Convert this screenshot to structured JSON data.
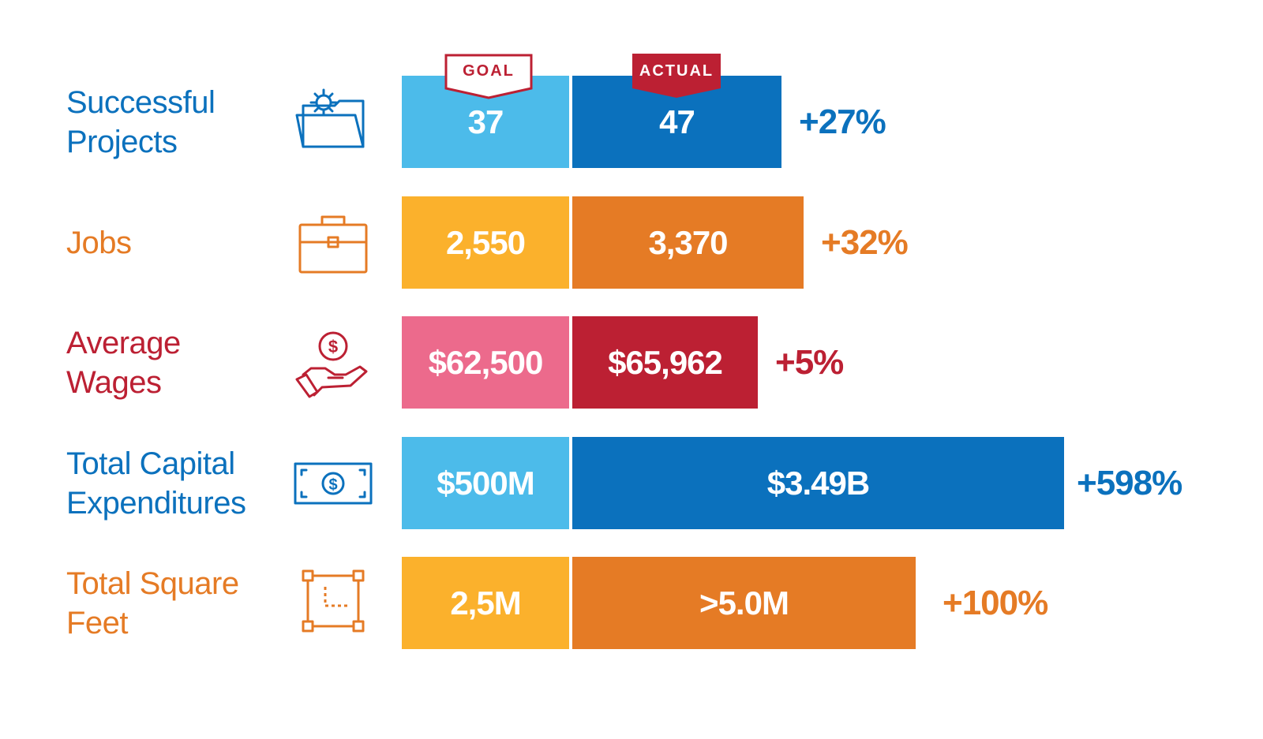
{
  "legend": {
    "goal": "GOAL",
    "actual": "ACTUAL"
  },
  "colors": {
    "blue_light": "#4cbbea",
    "blue_dark": "#0b71bd",
    "gold": "#fbb12c",
    "orange": "#e57b25",
    "pink": "#ec6a8c",
    "crimson": "#bc2033"
  },
  "chart_data": {
    "type": "bar",
    "orientation": "horizontal",
    "stacked": true,
    "series_names": [
      "GOAL",
      "ACTUAL"
    ],
    "rows": [
      {
        "label": [
          "Successful",
          "Projects"
        ],
        "icon": "folder-gear-icon",
        "goal": "37",
        "actual": "47",
        "change": "+27%",
        "goal_color": "#4cbbea",
        "actual_color": "#0b71bd",
        "text_color": "#0b71bd"
      },
      {
        "label": [
          "Jobs"
        ],
        "icon": "briefcase-icon",
        "goal": "2,550",
        "actual": "3,370",
        "change": "+32%",
        "goal_color": "#fbb12c",
        "actual_color": "#e57b25",
        "text_color": "#e57b25"
      },
      {
        "label": [
          "Average",
          "Wages"
        ],
        "icon": "hand-coin-icon",
        "goal": "$62,500",
        "actual": "$65,962",
        "change": "+5%",
        "goal_color": "#ec6a8c",
        "actual_color": "#bc2033",
        "text_color": "#bc2033"
      },
      {
        "label": [
          "Total Capital",
          "Expenditures"
        ],
        "icon": "banknote-icon",
        "goal": "$500M",
        "actual": "$3.49B",
        "change": "+598%",
        "goal_color": "#4cbbea",
        "actual_color": "#0b71bd",
        "text_color": "#0b71bd"
      },
      {
        "label": [
          "Total Square",
          "Feet"
        ],
        "icon": "square-area-icon",
        "goal": "2,5M",
        "actual": ">5.0M",
        "change": "+100%",
        "goal_color": "#fbb12c",
        "actual_color": "#e57b25",
        "text_color": "#e57b25"
      }
    ]
  }
}
